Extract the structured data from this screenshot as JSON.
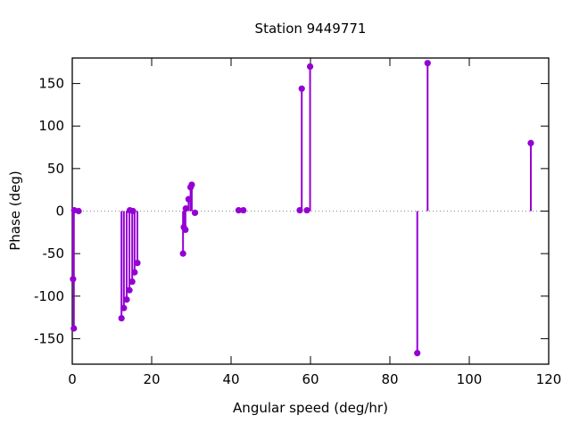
{
  "title": "Station 9449771",
  "chart_data": {
    "type": "scatter",
    "style": "impulses+points",
    "title": "Station 9449771",
    "xlabel": "Angular speed (deg/hr)",
    "ylabel": "Phase (deg)",
    "xlim": [
      0,
      120
    ],
    "ylim": [
      -180,
      180
    ],
    "xticks": [
      0,
      20,
      40,
      60,
      80,
      100,
      120
    ],
    "yticks": [
      -150,
      -100,
      -50,
      0,
      50,
      100,
      150
    ],
    "grid": false,
    "zero_line": true,
    "legend": "none",
    "series_color": "#9400D3",
    "axis_color": "#000000",
    "zero_line_color": "#888888",
    "points": [
      [
        0.2,
        -80
      ],
      [
        0.4,
        -138
      ],
      [
        0.5,
        1
      ],
      [
        1.6,
        0
      ],
      [
        12.4,
        -126
      ],
      [
        13.0,
        -114
      ],
      [
        13.7,
        -104
      ],
      [
        14.4,
        -93
      ],
      [
        14.5,
        1
      ],
      [
        15.1,
        -83
      ],
      [
        15.3,
        0
      ],
      [
        15.7,
        -72
      ],
      [
        16.4,
        -61
      ],
      [
        27.9,
        -50
      ],
      [
        28.1,
        -19
      ],
      [
        28.5,
        -22
      ],
      [
        28.6,
        3
      ],
      [
        29.3,
        14
      ],
      [
        29.8,
        28
      ],
      [
        30.1,
        31
      ],
      [
        30.9,
        -2
      ],
      [
        41.9,
        1
      ],
      [
        43.1,
        1
      ],
      [
        57.3,
        1
      ],
      [
        57.8,
        144
      ],
      [
        59.1,
        1
      ],
      [
        59.9,
        170
      ],
      [
        86.9,
        -167
      ],
      [
        89.5,
        174
      ],
      [
        115.5,
        80
      ]
    ]
  }
}
